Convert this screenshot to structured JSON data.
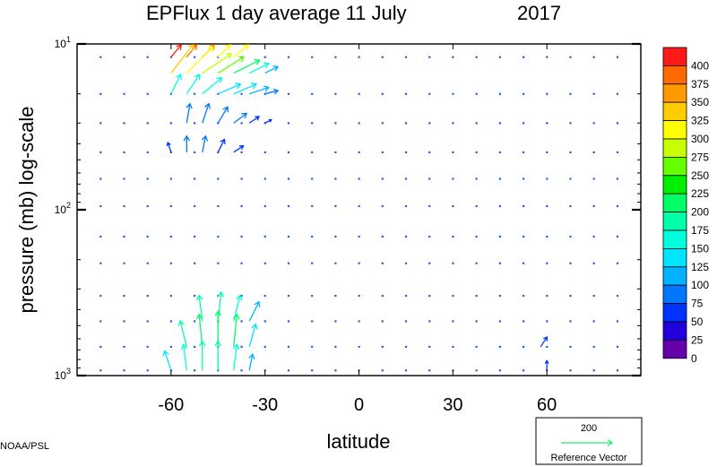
{
  "chart_data": {
    "type": "vector",
    "title": {
      "main": "EPFlux  1 day average  11 July",
      "year": "2017"
    },
    "xlabel": "latitude",
    "ylabel": "pressure (mb)  log-scale",
    "xlim": [
      -90,
      90
    ],
    "ylim": [
      1000,
      10
    ],
    "y_scale": "log",
    "x_ticks": [
      {
        "value": -60,
        "label": "-60"
      },
      {
        "value": -30,
        "label": "-30"
      },
      {
        "value": 0,
        "label": "0"
      },
      {
        "value": 30,
        "label": "30"
      },
      {
        "value": 60,
        "label": "60"
      }
    ],
    "y_ticks": [
      {
        "value": 10,
        "base": "10",
        "exp": "1"
      },
      {
        "value": 100,
        "base": "10",
        "exp": "2"
      },
      {
        "value": 1000,
        "base": "10",
        "exp": "3"
      }
    ],
    "colorbar": {
      "labels": [
        "400",
        "375",
        "350",
        "325",
        "300",
        "275",
        "250",
        "225",
        "200",
        "175",
        "150",
        "125",
        "100",
        "75",
        "50",
        "25",
        "0"
      ],
      "colors": [
        "#ff1a1a",
        "#ff6a00",
        "#ff9900",
        "#ffcc00",
        "#ffff00",
        "#c8ff00",
        "#66ff00",
        "#00ee00",
        "#00ff66",
        "#00ffaa",
        "#00ffdd",
        "#00e5ff",
        "#00b2ff",
        "#0077ff",
        "#0033ff",
        "#2200dd",
        "#6600aa"
      ]
    },
    "field": {
      "rows_pressure_mb": [
        12,
        20,
        30,
        45,
        65,
        95,
        145,
        210,
        330,
        470,
        670,
        930
      ],
      "lon_step": 7.5,
      "arrows": [
        {
          "lat": -60,
          "p": 12,
          "u": 10,
          "v": 12,
          "mag": 400
        },
        {
          "lat": -55,
          "p": 12,
          "u": 9,
          "v": 11,
          "mag": 380
        },
        {
          "lat": -50,
          "p": 12,
          "u": 9,
          "v": 9,
          "mag": 340
        },
        {
          "lat": -45,
          "p": 12,
          "u": 8,
          "v": 8,
          "mag": 310
        },
        {
          "lat": -40,
          "p": 12,
          "u": 6,
          "v": 5,
          "mag": 290
        },
        {
          "lat": -60,
          "p": 15,
          "u": 7,
          "v": 9,
          "mag": 330
        },
        {
          "lat": -55,
          "p": 15,
          "u": 8,
          "v": 8,
          "mag": 300
        },
        {
          "lat": -50,
          "p": 15,
          "u": 9,
          "v": 6,
          "mag": 270
        },
        {
          "lat": -45,
          "p": 15,
          "u": 8,
          "v": 5,
          "mag": 240
        },
        {
          "lat": -40,
          "p": 15,
          "u": 8,
          "v": 4,
          "mag": 210
        },
        {
          "lat": -35,
          "p": 15,
          "u": 6,
          "v": 3,
          "mag": 140
        },
        {
          "lat": -30,
          "p": 15,
          "u": 4,
          "v": 2,
          "mag": 90
        },
        {
          "lat": -60,
          "p": 20,
          "u": 3,
          "v": 6,
          "mag": 150
        },
        {
          "lat": -55,
          "p": 20,
          "u": 4,
          "v": 6,
          "mag": 140
        },
        {
          "lat": -50,
          "p": 20,
          "u": 6,
          "v": 5,
          "mag": 140
        },
        {
          "lat": -45,
          "p": 20,
          "u": 7,
          "v": 3,
          "mag": 130
        },
        {
          "lat": -40,
          "p": 20,
          "u": 7,
          "v": 3,
          "mag": 130
        },
        {
          "lat": -35,
          "p": 20,
          "u": 6,
          "v": 2,
          "mag": 110
        },
        {
          "lat": -30,
          "p": 20,
          "u": 4,
          "v": 1,
          "mag": 80
        },
        {
          "lat": -55,
          "p": 30,
          "u": 1,
          "v": 6,
          "mag": 80
        },
        {
          "lat": -50,
          "p": 30,
          "u": 2,
          "v": 6,
          "mag": 80
        },
        {
          "lat": -45,
          "p": 30,
          "u": 3,
          "v": 5,
          "mag": 75
        },
        {
          "lat": -40,
          "p": 30,
          "u": 4,
          "v": 3,
          "mag": 70
        },
        {
          "lat": -35,
          "p": 30,
          "u": 3,
          "v": 2,
          "mag": 55
        },
        {
          "lat": -30,
          "p": 30,
          "u": 2,
          "v": 1,
          "mag": 45
        },
        {
          "lat": -55,
          "p": 45,
          "u": 0,
          "v": 5,
          "mag": 70
        },
        {
          "lat": -50,
          "p": 45,
          "u": 1,
          "v": 5,
          "mag": 70
        },
        {
          "lat": -45,
          "p": 45,
          "u": 2,
          "v": 4,
          "mag": 60
        },
        {
          "lat": -40,
          "p": 45,
          "u": 3,
          "v": 2,
          "mag": 50
        },
        {
          "lat": -60,
          "p": 45,
          "u": -1,
          "v": 3,
          "mag": 40
        },
        {
          "lat": -50,
          "p": 470,
          "u": -1,
          "v": 8,
          "mag": 170
        },
        {
          "lat": -45,
          "p": 470,
          "u": 1,
          "v": 9,
          "mag": 180
        },
        {
          "lat": -40,
          "p": 470,
          "u": 2,
          "v": 8,
          "mag": 160
        },
        {
          "lat": -35,
          "p": 470,
          "u": 3,
          "v": 6,
          "mag": 100
        },
        {
          "lat": -55,
          "p": 670,
          "u": -2,
          "v": 8,
          "mag": 170
        },
        {
          "lat": -50,
          "p": 670,
          "u": -1,
          "v": 10,
          "mag": 200
        },
        {
          "lat": -45,
          "p": 670,
          "u": 0,
          "v": 11,
          "mag": 210
        },
        {
          "lat": -40,
          "p": 670,
          "u": 1,
          "v": 10,
          "mag": 190
        },
        {
          "lat": -35,
          "p": 670,
          "u": 2,
          "v": 7,
          "mag": 120
        },
        {
          "lat": -60,
          "p": 930,
          "u": -2,
          "v": 6,
          "mag": 120
        },
        {
          "lat": -55,
          "p": 930,
          "u": -1,
          "v": 8,
          "mag": 160
        },
        {
          "lat": -50,
          "p": 930,
          "u": 0,
          "v": 9,
          "mag": 170
        },
        {
          "lat": -45,
          "p": 930,
          "u": 0,
          "v": 9,
          "mag": 170
        },
        {
          "lat": -40,
          "p": 930,
          "u": 1,
          "v": 8,
          "mag": 150
        },
        {
          "lat": -35,
          "p": 930,
          "u": 1,
          "v": 5,
          "mag": 90
        },
        {
          "lat": 58,
          "p": 670,
          "u": 2,
          "v": 3,
          "mag": 60
        },
        {
          "lat": 60,
          "p": 930,
          "u": 0,
          "v": 3,
          "mag": 50
        }
      ]
    },
    "reference_vector": {
      "value": "200",
      "label": "Reference Vector",
      "color": "#22ee66"
    },
    "credit": "NOAA/PSL"
  }
}
